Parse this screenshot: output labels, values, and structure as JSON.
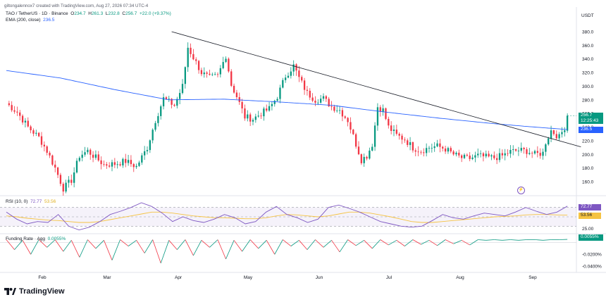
{
  "header": {
    "credit": "giltongalennox7 created with TradingView.com, Aug 27, 2026 07:34 UTC-4",
    "currency": "USDT"
  },
  "legend": {
    "pair": "TAO / TetherUS · 1D · Binance",
    "o_label": "O",
    "o_value": "234.7",
    "h_label": "H",
    "h_value": "261.3",
    "l_label": "L",
    "l_value": "232.8",
    "c_label": "C",
    "c_value": "256.7",
    "change": "+22.0 (+9.37%)",
    "ema_label": "EMA (200, close)",
    "ema_value": "236.5"
  },
  "price_tags": {
    "last": "256.7",
    "countdown": "12:25:43",
    "ema": "236.5"
  },
  "rsi_legend": {
    "label": "RSI (10, 0)",
    "value1": "72.77",
    "value2": "53.56"
  },
  "funding_legend": {
    "label": "Funding Rate · Agg",
    "value": "0.0055%"
  },
  "footer": {
    "brand": "TradingView"
  },
  "colors": {
    "up": "#089981",
    "down": "#f23645",
    "ema": "#2962ff",
    "trendline": "#131722",
    "rsi": "#7e57c2",
    "rsi_ma": "#f5c342",
    "funding_up": "#089981",
    "funding_down": "#f23645"
  },
  "chart_data": [
    {
      "type": "candlestick",
      "title": "TAO / TetherUS",
      "yaxis_ticks": [
        160,
        180,
        200,
        220,
        240,
        260,
        280,
        300,
        320,
        340,
        360,
        380
      ],
      "ylim": [
        142,
        398
      ],
      "x_ticks": [
        "Feb",
        "Mar",
        "Apr",
        "May",
        "Jun",
        "Jul",
        "Aug",
        "Sep"
      ],
      "anchors": [
        [
          0,
          275
        ],
        [
          4,
          262
        ],
        [
          8,
          240
        ],
        [
          12,
          225
        ],
        [
          15,
          205
        ],
        [
          18,
          180
        ],
        [
          21,
          150
        ],
        [
          24,
          162
        ],
        [
          27,
          198
        ],
        [
          30,
          205
        ],
        [
          33,
          195
        ],
        [
          36,
          185
        ],
        [
          40,
          186
        ],
        [
          44,
          190
        ],
        [
          48,
          182
        ],
        [
          52,
          210
        ],
        [
          55,
          250
        ],
        [
          58,
          282
        ],
        [
          62,
          272
        ],
        [
          65,
          300
        ],
        [
          67,
          357
        ],
        [
          69,
          342
        ],
        [
          72,
          320
        ],
        [
          75,
          312
        ],
        [
          78,
          315
        ],
        [
          81,
          345
        ],
        [
          83,
          302
        ],
        [
          85,
          285
        ],
        [
          88,
          255
        ],
        [
          91,
          252
        ],
        [
          94,
          260
        ],
        [
          97,
          267
        ],
        [
          100,
          285
        ],
        [
          103,
          315
        ],
        [
          106,
          330
        ],
        [
          108,
          312
        ],
        [
          111,
          290
        ],
        [
          114,
          280
        ],
        [
          117,
          282
        ],
        [
          120,
          270
        ],
        [
          123,
          265
        ],
        [
          126,
          250
        ],
        [
          129,
          215
        ],
        [
          131,
          192
        ],
        [
          133,
          198
        ],
        [
          135,
          215
        ],
        [
          137,
          270
        ],
        [
          139,
          265
        ],
        [
          141,
          240
        ],
        [
          144,
          228
        ],
        [
          147,
          222
        ],
        [
          150,
          210
        ],
        [
          153,
          205
        ],
        [
          156,
          210
        ],
        [
          159,
          212
        ],
        [
          162,
          208
        ],
        [
          165,
          200
        ],
        [
          168,
          195
        ],
        [
          171,
          194
        ],
        [
          174,
          198
        ],
        [
          177,
          196
        ],
        [
          180,
          195
        ],
        [
          183,
          198
        ],
        [
          186,
          204
        ],
        [
          189,
          206
        ],
        [
          192,
          205
        ],
        [
          195,
          200
        ],
        [
          198,
          202
        ],
        [
          199,
          218
        ],
        [
          201,
          235
        ],
        [
          204,
          225
        ],
        [
          206,
          240
        ],
        [
          207,
          256.7
        ]
      ],
      "ema200": [
        [
          0,
          323
        ],
        [
          20,
          312
        ],
        [
          40,
          295
        ],
        [
          60,
          280
        ],
        [
          80,
          281
        ],
        [
          100,
          277
        ],
        [
          120,
          272
        ],
        [
          140,
          262
        ],
        [
          160,
          253
        ],
        [
          180,
          245
        ],
        [
          195,
          240
        ],
        [
          207,
          236.5
        ]
      ],
      "trendline": [
        [
          61,
          380
        ],
        [
          212,
          211
        ]
      ]
    },
    {
      "type": "line",
      "title": "RSI (10, 0)",
      "yaxis_ticks": [
        25.0
      ],
      "levels": [
        70,
        50,
        30
      ],
      "ylim": [
        15,
        88
      ],
      "rsi": [
        60,
        45,
        35,
        40,
        38,
        55,
        30,
        22,
        28,
        40,
        55,
        62,
        70,
        80,
        72,
        58,
        40,
        50,
        42,
        38,
        45,
        55,
        48,
        35,
        40,
        60,
        72,
        55,
        48,
        38,
        45,
        70,
        75,
        68,
        60,
        50,
        40,
        35,
        30,
        28,
        30,
        42,
        55,
        48,
        45,
        52,
        58,
        55,
        52,
        60,
        70,
        62,
        55,
        60,
        72.77
      ],
      "rsi_ma": [
        52,
        50,
        47,
        45,
        43,
        42,
        40,
        38,
        38,
        40,
        44,
        48,
        52,
        56,
        60,
        60,
        58,
        55,
        52,
        50,
        48,
        48,
        47,
        46,
        46,
        48,
        52,
        55,
        54,
        52,
        50,
        52,
        56,
        60,
        60,
        58,
        54,
        50,
        45,
        40,
        38,
        38,
        40,
        42,
        44,
        46,
        48,
        50,
        51,
        52,
        54,
        55,
        55,
        54,
        53.56
      ]
    },
    {
      "type": "bar",
      "title": "Funding Rate · Agg",
      "yaxis_ticks": [
        "0.0055%",
        "-0.0200%",
        "-0.0400%"
      ],
      "ylim": [
        -0.045,
        0.008
      ],
      "values": [
        0.005,
        -0.012,
        0.004,
        -0.02,
        0.005,
        -0.008,
        0.005,
        -0.015,
        0.004,
        -0.025,
        0.005,
        -0.01,
        0.004,
        -0.03,
        0.005,
        -0.006,
        0.004,
        -0.018,
        0.005,
        -0.035,
        0.004,
        -0.012,
        0.005,
        -0.022,
        0.004,
        -0.008,
        0.005,
        -0.028,
        0.004,
        -0.015,
        0.005,
        -0.01,
        0.004,
        -0.02,
        0.005,
        -0.006,
        0.004,
        -0.012,
        0.005,
        -0.008,
        0.004,
        -0.016,
        0.005,
        -0.005,
        0.004,
        -0.01,
        0.005,
        -0.004,
        0.004,
        -0.006,
        0.005,
        -0.003,
        0.004,
        -0.005,
        0.005,
        -0.002,
        0.004,
        -0.004,
        0.005,
        0.004,
        0.005,
        0.004,
        0.005,
        0.004,
        0.005,
        0.005,
        0.004,
        0.005,
        0.005,
        0.0055
      ]
    }
  ]
}
